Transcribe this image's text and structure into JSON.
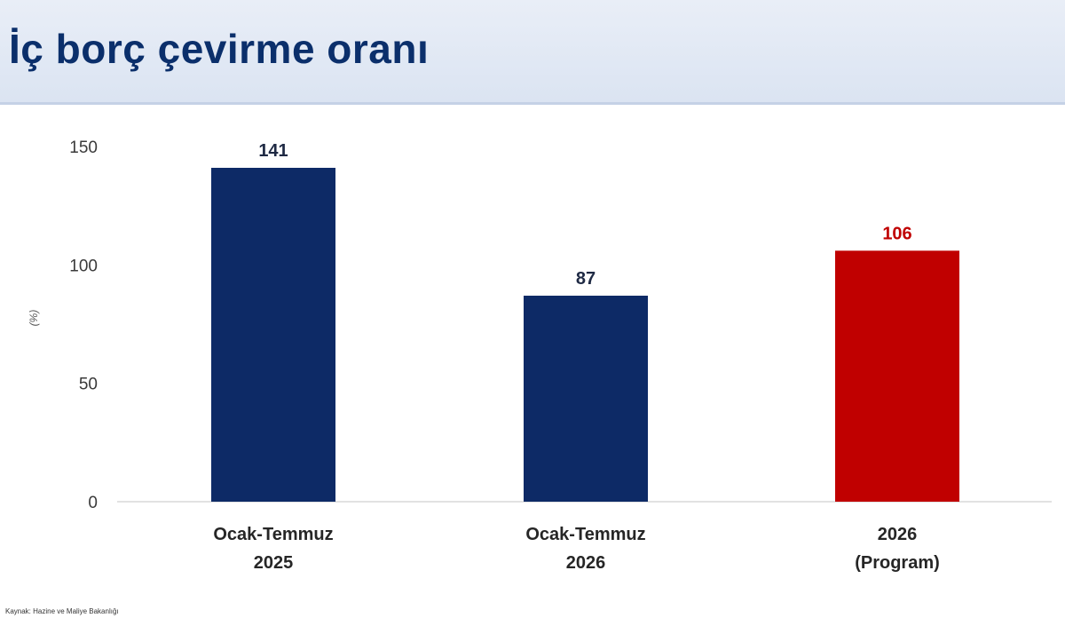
{
  "title": "İç borç çevirme oranı",
  "source": "Kaynak: Hazine ve Maliye Bakanlığı",
  "colors": {
    "title": "#0b2f6b",
    "bar_actual": "#0d2a66",
    "bar_program": "#c00000",
    "label_actual": "#1f2a44",
    "label_program": "#c00000"
  },
  "chart_data": {
    "type": "bar",
    "title": "İç borç çevirme oranı",
    "ylabel": "(%)",
    "xlabel": "",
    "ylim": [
      0,
      150
    ],
    "yticks": [
      "0",
      "50",
      "100",
      "150"
    ],
    "grid": false,
    "categories": [
      [
        "Ocak-Temmuz",
        "2025"
      ],
      [
        "Ocak-Temmuz",
        "2026"
      ],
      [
        "2026",
        "(Program)"
      ]
    ],
    "values": [
      141,
      87,
      106
    ],
    "value_labels": [
      "141",
      "87",
      "106"
    ],
    "bar_colors": [
      "#0d2a66",
      "#0d2a66",
      "#c00000"
    ]
  }
}
